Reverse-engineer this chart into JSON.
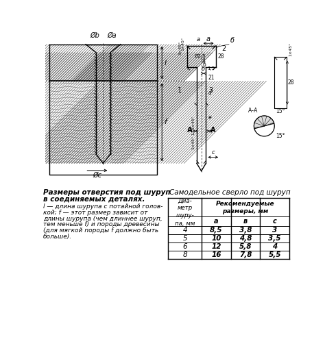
{
  "title": "",
  "bg_color": "#ffffff",
  "left_title_line1": "Размеры отверстия под шуруп",
  "left_title_line2": "в соединяемых деталях.",
  "left_text_lines": [
    "l — длина шурупа с потайной голов-",
    "кой; f — этот размер зависит от",
    "длины шурупа (чем длиннее шуруп,",
    "тем меньше f) и породы древесины",
    "(для мягкой породы f должно быть",
    "больше)."
  ],
  "right_title": "Самодельное сверло под шуруп",
  "table_data": [
    [
      "4",
      "8,5",
      "3,8",
      "3"
    ],
    [
      "5",
      "10",
      "4,8",
      "3,5"
    ],
    [
      "6",
      "12",
      "5,8",
      "4"
    ],
    [
      "8",
      "16",
      "7,8",
      "5,5"
    ]
  ],
  "figsize": [
    4.74,
    5.08
  ],
  "dpi": 100
}
